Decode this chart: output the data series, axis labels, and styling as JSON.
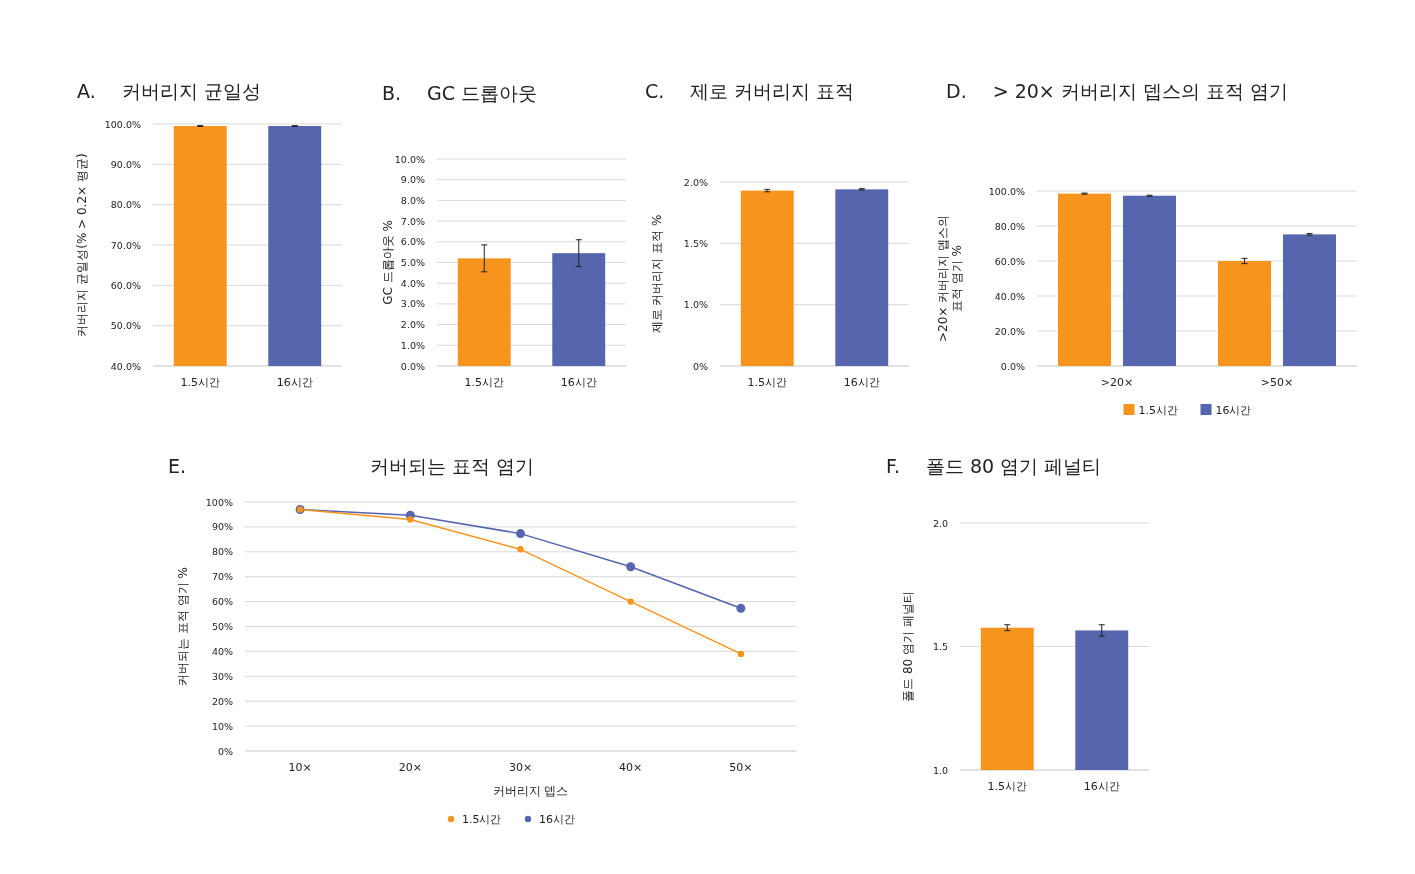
{
  "chart_data": [
    {
      "type": "bar",
      "title": "A. 커버리지 균일성",
      "ylabel": "커버리지 균일성(% > 0.2× 평균)",
      "categories": [
        "1.5시간",
        "16시간"
      ],
      "values": [
        99.5,
        99.5
      ],
      "errors": [
        0.1,
        0.1
      ],
      "colors": [
        "#f7941d",
        "#5565ae"
      ],
      "ylim": [
        40,
        100
      ],
      "yticks": [
        {
          "value": 40,
          "label": "40.0%"
        },
        {
          "value": 50,
          "label": "50.0%"
        },
        {
          "value": 60,
          "label": "60.0%"
        },
        {
          "value": 70,
          "label": "70.0%"
        },
        {
          "value": 80,
          "label": "80.0%"
        },
        {
          "value": 90,
          "label": "90.0%"
        },
        {
          "value": 100,
          "label": "100.0%"
        }
      ],
      "grid": "y"
    },
    {
      "type": "bar",
      "title": "B. GC 드롭아웃",
      "ylabel": "GC 드롭아웃 %",
      "categories": [
        "1.5시간",
        "16시간"
      ],
      "values": [
        5.2,
        5.45
      ],
      "errors": [
        0.65,
        0.65
      ],
      "colors": [
        "#f7941d",
        "#5565ae"
      ],
      "ylim": [
        0,
        10
      ],
      "yticks": [
        {
          "value": 0,
          "label": "0.0%"
        },
        {
          "value": 1,
          "label": "1.0%"
        },
        {
          "value": 2,
          "label": "2.0%"
        },
        {
          "value": 3,
          "label": "3.0%"
        },
        {
          "value": 4,
          "label": "4.0%"
        },
        {
          "value": 5,
          "label": "5.0%"
        },
        {
          "value": 6,
          "label": "6.0%"
        },
        {
          "value": 7,
          "label": "7.0%"
        },
        {
          "value": 8,
          "label": "8.0%"
        },
        {
          "value": 9,
          "label": "9.0%"
        },
        {
          "value": 10,
          "label": "10.0%"
        }
      ],
      "grid": "y"
    },
    {
      "type": "bar",
      "title": "C. 제로 커버리지 표적",
      "ylabel": "제로 커버리지 표적 %",
      "categories": [
        "1.5시간",
        "16시간"
      ],
      "values": [
        1.93,
        1.94
      ],
      "errors": [
        0.01,
        0.006
      ],
      "colors": [
        "#f7941d",
        "#5565ae"
      ],
      "ylim": [
        0.5,
        2.0
      ],
      "yticks": [
        {
          "value": 0.5,
          "label": "0%"
        },
        {
          "value": 1.0,
          "label": "1.0%"
        },
        {
          "value": 1.5,
          "label": "1.5%"
        },
        {
          "value": 2.0,
          "label": "2.0%"
        }
      ],
      "grid": "y"
    },
    {
      "type": "bar",
      "title": "D. > 20× 커버리지 뎁스의 표적 염기",
      "ylabel": ">20× 커버리지 뎁스의\n표적 염기 %",
      "categories": [
        ">20×",
        ">50×"
      ],
      "series": [
        {
          "name": "1.5시간",
          "color": "#f7941d",
          "values": [
            98.5,
            60.0
          ],
          "errors": [
            0.3,
            1.5
          ]
        },
        {
          "name": "16시간",
          "color": "#5565ae",
          "values": [
            97.3,
            75.2
          ],
          "errors": [
            0.3,
            0.5
          ]
        }
      ],
      "ylim": [
        0,
        100
      ],
      "yticks": [
        {
          "value": 0,
          "label": "0.0%"
        },
        {
          "value": 20,
          "label": "20.0%"
        },
        {
          "value": 40,
          "label": "40.0%"
        },
        {
          "value": 60,
          "label": "60.0%"
        },
        {
          "value": 80,
          "label": "80.0%"
        },
        {
          "value": 100,
          "label": "100.0%"
        }
      ],
      "grid": "y",
      "legend": "bottom"
    },
    {
      "type": "line",
      "title": "E. 커버되는 표적 염기",
      "xlabel": "커버리지 뎁스",
      "ylabel": "커버되는 표적 염기 %",
      "categories": [
        "10×",
        "20×",
        "30×",
        "40×",
        "50×"
      ],
      "series": [
        {
          "name": "1.5시간",
          "color": "#f7941d",
          "values": [
            97,
            93,
            81,
            60,
            39
          ]
        },
        {
          "name": "16시간",
          "color": "#5565ae",
          "values": [
            97,
            94.7,
            87.3,
            74,
            57.3
          ]
        }
      ],
      "ylim": [
        0,
        100
      ],
      "yticks": [
        {
          "value": 0,
          "label": "0%"
        },
        {
          "value": 10,
          "label": "10%"
        },
        {
          "value": 20,
          "label": "20%"
        },
        {
          "value": 30,
          "label": "30%"
        },
        {
          "value": 40,
          "label": "40%"
        },
        {
          "value": 50,
          "label": "50%"
        },
        {
          "value": 60,
          "label": "60%"
        },
        {
          "value": 70,
          "label": "70%"
        },
        {
          "value": 80,
          "label": "80%"
        },
        {
          "value": 90,
          "label": "90%"
        },
        {
          "value": 100,
          "label": "100%"
        }
      ],
      "grid": "y",
      "legend": "bottom",
      "marker": "circle"
    },
    {
      "type": "bar",
      "title": "F. 폴드 80 염기 페널티",
      "ylabel": "폴드 80 염기 페널티",
      "categories": [
        "1.5시간",
        "16시간"
      ],
      "values": [
        1.576,
        1.565
      ],
      "errors": [
        0.012,
        0.023
      ],
      "colors": [
        "#f7941d",
        "#5565ae"
      ],
      "ylim": [
        1.0,
        2.0
      ],
      "yticks": [
        {
          "value": 1.0,
          "label": "1.0"
        },
        {
          "value": 1.5,
          "label": "1.5"
        },
        {
          "value": 2.0,
          "label": "2.0"
        }
      ],
      "grid": "y"
    }
  ]
}
